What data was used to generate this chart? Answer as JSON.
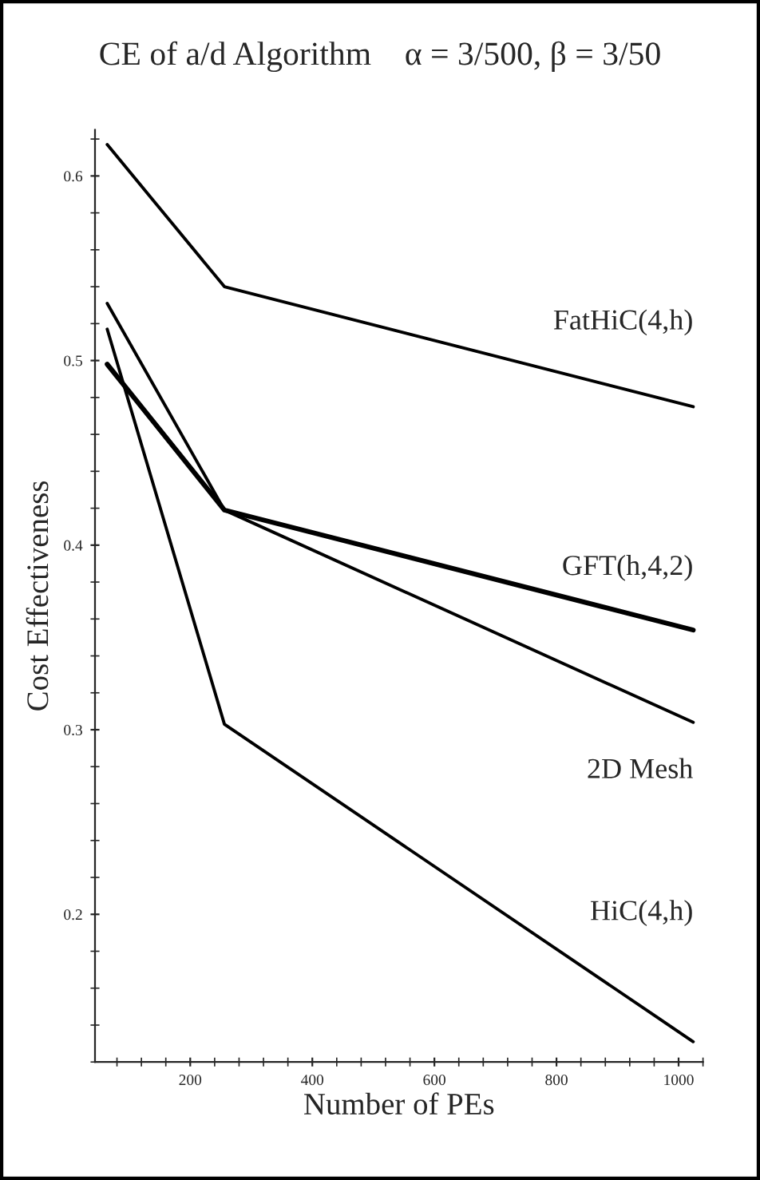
{
  "chart_data": {
    "type": "line",
    "title": "CE of a/d Algorithm    α = 3/500, β = 3/50",
    "xlabel": "Number of PEs",
    "ylabel": "Cost Effectiveness",
    "x": [
      64,
      256,
      1024
    ],
    "series": [
      {
        "name": "FatHiC(4,h)",
        "color": "#000000",
        "values": [
          0.617,
          0.54,
          0.475
        ]
      },
      {
        "name": "GFT(h,4,2)",
        "color": "#000000",
        "values": [
          0.498,
          0.419,
          0.354
        ]
      },
      {
        "name": "2D Mesh",
        "color": "#000000",
        "values": [
          0.531,
          0.419,
          0.304
        ]
      },
      {
        "name": "HiC(4,h)",
        "color": "#000000",
        "values": [
          0.517,
          0.303,
          0.131
        ]
      }
    ],
    "xlim": [
      44,
      1040
    ],
    "ylim": [
      0.12,
      0.625
    ],
    "xticks": [
      200,
      400,
      600,
      800,
      1000
    ],
    "yticks": [
      0.2,
      0.3,
      0.4,
      0.5,
      0.6
    ],
    "grid": false,
    "legend": false,
    "marker": "none",
    "line_style": "solid"
  }
}
